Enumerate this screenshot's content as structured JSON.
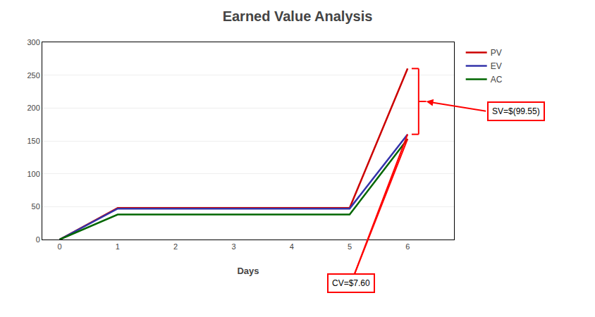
{
  "chart_data": {
    "type": "line",
    "title": "Earned Value Analysis",
    "xlabel": "Days",
    "x": [
      0,
      1,
      2,
      3,
      4,
      5,
      6
    ],
    "series": [
      {
        "name": "PV",
        "color": "#CC0000",
        "values": [
          0,
          48,
          48,
          48,
          48,
          48,
          260
        ]
      },
      {
        "name": "EV",
        "color": "#3333AA",
        "values": [
          0,
          47,
          47,
          47,
          47,
          47,
          160
        ]
      },
      {
        "name": "AC",
        "color": "#006600",
        "values": [
          0,
          38,
          38,
          38,
          38,
          38,
          153
        ]
      }
    ],
    "xlim": [
      -0.3,
      6.8
    ],
    "ylim": [
      0,
      300
    ],
    "xticks": [
      0,
      1,
      2,
      3,
      4,
      5,
      6
    ],
    "yticks": [
      0,
      50,
      100,
      150,
      200,
      250,
      300
    ],
    "grid": true,
    "legend": "right",
    "annotations": [
      {
        "text": "SV=$(99.55)",
        "series": [
          "PV",
          "EV"
        ]
      },
      {
        "text": "CV=$7.60",
        "series": [
          "EV",
          "AC"
        ]
      }
    ]
  }
}
